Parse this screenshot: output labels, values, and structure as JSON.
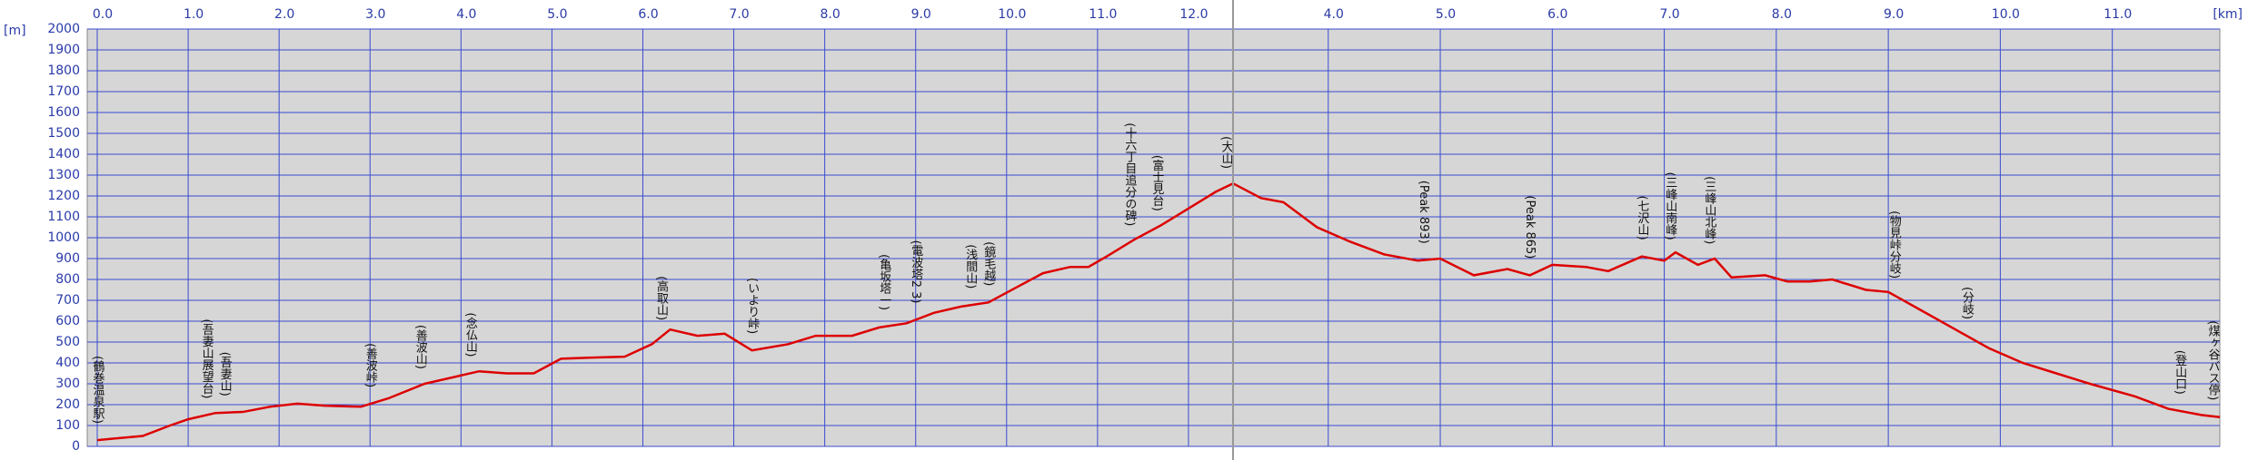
{
  "chart_data": [
    {
      "type": "line",
      "y_label": "[m]",
      "xlim": [
        -0.11,
        12.49
      ],
      "ylim": [
        0,
        2000
      ],
      "xticks": [
        {
          "value": 0,
          "label": "0.0"
        },
        {
          "value": 1,
          "label": "1.0"
        },
        {
          "value": 2,
          "label": "2.0"
        },
        {
          "value": 3,
          "label": "3.0"
        },
        {
          "value": 4,
          "label": "4.0"
        },
        {
          "value": 5,
          "label": "5.0"
        },
        {
          "value": 6,
          "label": "6.0"
        },
        {
          "value": 7,
          "label": "7.0"
        },
        {
          "value": 8,
          "label": "8.0"
        },
        {
          "value": 9,
          "label": "9.0"
        },
        {
          "value": 10,
          "label": "10.0"
        },
        {
          "value": 11,
          "label": "11.0"
        },
        {
          "value": 12,
          "label": "12.0"
        }
      ],
      "yticks": [
        0,
        100,
        200,
        300,
        400,
        500,
        600,
        700,
        800,
        900,
        1000,
        1100,
        1200,
        1300,
        1400,
        1500,
        1600,
        1700,
        1800,
        1900,
        2000
      ],
      "grid": true,
      "series": [
        {
          "color": "#dd0000",
          "x": [
            0.0,
            0.5,
            0.8,
            1.0,
            1.3,
            1.6,
            1.9,
            2.2,
            2.5,
            2.9,
            3.2,
            3.6,
            3.9,
            4.2,
            4.5,
            4.8,
            5.1,
            5.4,
            5.8,
            6.1,
            6.3,
            6.6,
            6.9,
            7.2,
            7.6,
            7.9,
            8.3,
            8.6,
            8.9,
            9.2,
            9.5,
            9.8,
            10.1,
            10.4,
            10.7,
            10.9,
            11.1,
            11.4,
            11.7,
            12.0,
            12.3,
            12.49
          ],
          "values": [
            30,
            50,
            100,
            130,
            160,
            165,
            190,
            205,
            195,
            190,
            230,
            300,
            330,
            360,
            350,
            350,
            420,
            425,
            430,
            490,
            560,
            530,
            540,
            460,
            490,
            530,
            530,
            570,
            590,
            640,
            670,
            690,
            760,
            830,
            860,
            860,
            910,
            990,
            1060,
            1140,
            1220,
            1260
          ]
        }
      ],
      "annotations": [
        {
          "x": 0.0,
          "text": "(鶴巻温泉駅)"
        },
        {
          "x": 1.2,
          "text": "(吾妻山展望台)"
        },
        {
          "x": 1.4,
          "text": "(吾妻山)"
        },
        {
          "x": 3.0,
          "text": "(善波峠)"
        },
        {
          "x": 3.55,
          "text": "(善波山)"
        },
        {
          "x": 4.1,
          "text": "(念仏山)"
        },
        {
          "x": 6.2,
          "text": "(高取山)"
        },
        {
          "x": 7.2,
          "text": "(いより峠)"
        },
        {
          "x": 8.65,
          "text": "(亀坂塔一)"
        },
        {
          "x": 9.0,
          "text": "(電波塔2 3)"
        },
        {
          "x": 9.6,
          "text": "(浅間山)"
        },
        {
          "x": 9.8,
          "text": "(鏡毛越)"
        },
        {
          "x": 11.35,
          "text": "(十六丁目追分の碑)"
        },
        {
          "x": 11.65,
          "text": "(富士見台)"
        },
        {
          "x": 12.45,
          "text": "(大山)"
        }
      ]
    },
    {
      "type": "line",
      "x_label": "[km]",
      "xlim": [
        3.15,
        11.96
      ],
      "ylim": [
        0,
        2000
      ],
      "xticks": [
        {
          "value": 4,
          "label": "4.0"
        },
        {
          "value": 5,
          "label": "5.0"
        },
        {
          "value": 6,
          "label": "6.0"
        },
        {
          "value": 7,
          "label": "7.0"
        },
        {
          "value": 8,
          "label": "8.0"
        },
        {
          "value": 9,
          "label": "9.0"
        },
        {
          "value": 10,
          "label": "10.0"
        },
        {
          "value": 11,
          "label": "11.0"
        }
      ],
      "series": [
        {
          "color": "#dd0000",
          "x": [
            3.15,
            3.4,
            3.6,
            3.9,
            4.2,
            4.5,
            4.8,
            5.0,
            5.3,
            5.6,
            5.8,
            6.0,
            6.3,
            6.5,
            6.8,
            7.0,
            7.1,
            7.3,
            7.45,
            7.6,
            7.9,
            8.1,
            8.3,
            8.5,
            8.8,
            9.0,
            9.3,
            9.6,
            9.9,
            10.2,
            10.5,
            10.8,
            11.2,
            11.5,
            11.8,
            11.96
          ],
          "values": [
            1260,
            1190,
            1170,
            1050,
            980,
            920,
            890,
            900,
            820,
            850,
            820,
            870,
            860,
            840,
            910,
            890,
            930,
            870,
            900,
            810,
            820,
            790,
            790,
            800,
            750,
            740,
            650,
            560,
            470,
            400,
            350,
            300,
            240,
            180,
            150,
            140
          ]
        }
      ],
      "annotations": [
        {
          "x": 4.85,
          "text": "(Peak 893)"
        },
        {
          "x": 5.8,
          "text": "(Peak 865)"
        },
        {
          "x": 6.8,
          "text": "(七沢山)"
        },
        {
          "x": 7.05,
          "text": "(三峰山南峰)"
        },
        {
          "x": 7.4,
          "text": "(三峰山北峰)"
        },
        {
          "x": 9.05,
          "text": "(物見峠分岐)"
        },
        {
          "x": 9.7,
          "text": "(分岐)"
        },
        {
          "x": 11.6,
          "text": "(登山口)"
        },
        {
          "x": 11.93,
          "text": "(煤ヶ谷バス停)"
        }
      ]
    }
  ]
}
